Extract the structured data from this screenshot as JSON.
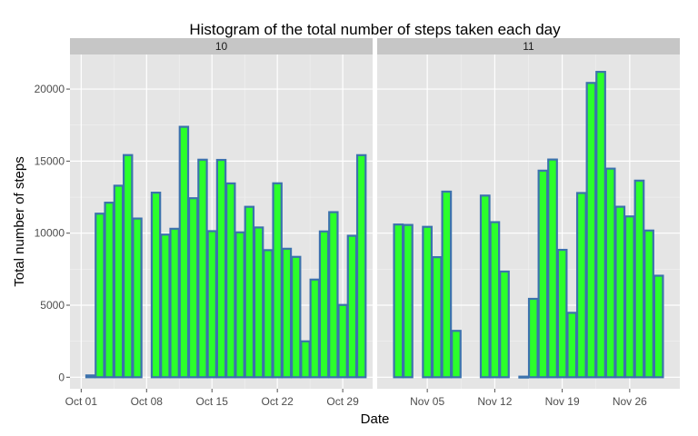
{
  "chart_data": {
    "type": "bar",
    "title": "Histogram of the total number of steps taken each day",
    "xlabel": "Date",
    "ylabel": "Total number of steps",
    "ylim": [
      -800,
      22400
    ],
    "yticks": [
      0,
      5000,
      10000,
      15000,
      20000
    ],
    "y_tick_labels": [
      "0",
      "5000",
      "10000",
      "15000",
      "20000"
    ],
    "grid": true,
    "legend": "none",
    "colors": {
      "bar_fill": "#2bff2b",
      "bar_outline": "#3c72ad",
      "panel_bg": "#e5e5e5",
      "strip_bg": "#c6c6c6",
      "grid_major": "#ffffff",
      "grid_minor": "#f2f2f2",
      "tick_text": "#4d4d4d"
    },
    "panels": [
      {
        "strip": "10",
        "xlim": [
          "2012-10-01",
          "2012-10-31"
        ],
        "x_ticks": [
          "2012-10-01",
          "2012-10-08",
          "2012-10-15",
          "2012-10-22",
          "2012-10-29"
        ],
        "x_tick_labels": [
          "Oct 01",
          "Oct 08",
          "Oct 15",
          "Oct 22",
          "Oct 29"
        ],
        "dates": [
          "2012-10-01",
          "2012-10-02",
          "2012-10-03",
          "2012-10-04",
          "2012-10-05",
          "2012-10-06",
          "2012-10-07",
          "2012-10-08",
          "2012-10-09",
          "2012-10-10",
          "2012-10-11",
          "2012-10-12",
          "2012-10-13",
          "2012-10-14",
          "2012-10-15",
          "2012-10-16",
          "2012-10-17",
          "2012-10-18",
          "2012-10-19",
          "2012-10-20",
          "2012-10-21",
          "2012-10-22",
          "2012-10-23",
          "2012-10-24",
          "2012-10-25",
          "2012-10-26",
          "2012-10-27",
          "2012-10-28",
          "2012-10-29",
          "2012-10-30",
          "2012-10-31"
        ],
        "values": [
          0,
          126,
          11352,
          12116,
          13294,
          15420,
          11015,
          0,
          12811,
          9900,
          10304,
          17382,
          12426,
          15098,
          10139,
          15084,
          13452,
          10056,
          11829,
          10395,
          8821,
          13460,
          8918,
          8355,
          2492,
          6778,
          10119,
          11458,
          5018,
          9819,
          15414
        ]
      },
      {
        "strip": "11",
        "xlim": [
          "2012-11-01",
          "2012-11-30"
        ],
        "x_ticks": [
          "2012-11-05",
          "2012-11-12",
          "2012-11-19",
          "2012-11-26"
        ],
        "x_tick_labels": [
          "Nov 05",
          "Nov 12",
          "Nov 19",
          "Nov 26"
        ],
        "dates": [
          "2012-11-01",
          "2012-11-02",
          "2012-11-03",
          "2012-11-04",
          "2012-11-05",
          "2012-11-06",
          "2012-11-07",
          "2012-11-08",
          "2012-11-09",
          "2012-11-10",
          "2012-11-11",
          "2012-11-12",
          "2012-11-13",
          "2012-11-14",
          "2012-11-15",
          "2012-11-16",
          "2012-11-17",
          "2012-11-18",
          "2012-11-19",
          "2012-11-20",
          "2012-11-21",
          "2012-11-22",
          "2012-11-23",
          "2012-11-24",
          "2012-11-25",
          "2012-11-26",
          "2012-11-27",
          "2012-11-28",
          "2012-11-29",
          "2012-11-30"
        ],
        "values": [
          0,
          10600,
          10571,
          0,
          10439,
          8334,
          12883,
          3219,
          0,
          0,
          12608,
          10765,
          7336,
          0,
          41,
          5441,
          14339,
          15110,
          8841,
          4472,
          12787,
          20427,
          21194,
          14478,
          11834,
          11162,
          13646,
          10183,
          7047,
          0
        ]
      }
    ]
  }
}
